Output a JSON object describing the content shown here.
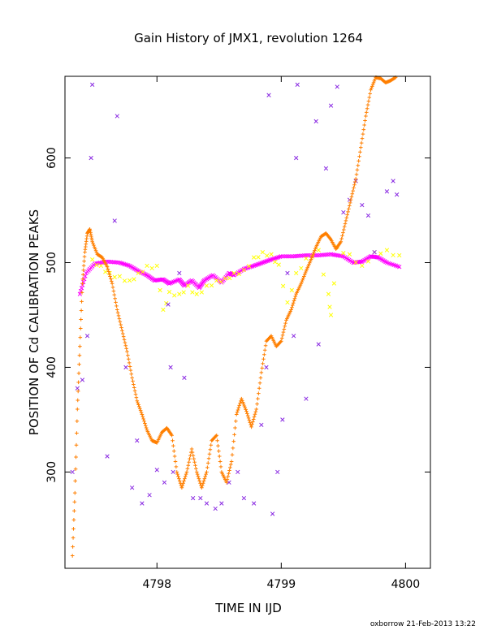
{
  "chart_data": {
    "type": "scatter",
    "title": "Gain History of JMX1, revolution 1264",
    "xlabel": "TIME IN IJD",
    "ylabel": "POSITION OF Cd CALIBRATION PEAKS",
    "xlim": [
      4797.26,
      4800.2
    ],
    "ylim": [
      208,
      678
    ],
    "x_ticks": [
      4798,
      4799,
      4800
    ],
    "y_ticks": [
      300,
      400,
      500,
      600
    ],
    "grid": false,
    "legend": "none",
    "series": [
      {
        "color": "#ff00ff",
        "marker": "dense-x",
        "points": [
          [
            4797.38,
            470
          ],
          [
            4797.43,
            490
          ],
          [
            4797.5,
            499
          ],
          [
            4797.6,
            501
          ],
          [
            4797.7,
            500
          ],
          [
            4797.78,
            497
          ],
          [
            4797.85,
            492
          ],
          [
            4797.92,
            488
          ],
          [
            4797.98,
            483
          ],
          [
            4798.05,
            484
          ],
          [
            4798.1,
            480
          ],
          [
            4798.18,
            484
          ],
          [
            4798.22,
            478
          ],
          [
            4798.28,
            483
          ],
          [
            4798.34,
            476
          ],
          [
            4798.38,
            483
          ],
          [
            4798.45,
            488
          ],
          [
            4798.52,
            481
          ],
          [
            4798.58,
            490
          ],
          [
            4798.62,
            488
          ],
          [
            4798.7,
            494
          ],
          [
            4798.78,
            497
          ],
          [
            4798.85,
            500
          ],
          [
            4798.92,
            503
          ],
          [
            4799.0,
            506
          ],
          [
            4799.1,
            506
          ],
          [
            4799.2,
            507
          ],
          [
            4799.3,
            507
          ],
          [
            4799.4,
            508
          ],
          [
            4799.5,
            506
          ],
          [
            4799.58,
            500
          ],
          [
            4799.65,
            501
          ],
          [
            4799.72,
            506
          ],
          [
            4799.78,
            505
          ],
          [
            4799.85,
            500
          ],
          [
            4799.95,
            496
          ]
        ]
      },
      {
        "color": "#ffff00",
        "marker": "sparse-x",
        "points": [
          [
            4797.48,
            503
          ],
          [
            4797.55,
            497
          ],
          [
            4797.62,
            490
          ],
          [
            4797.7,
            487
          ],
          [
            4797.78,
            483
          ],
          [
            4797.85,
            490
          ],
          [
            4797.92,
            497
          ],
          [
            4798.0,
            497
          ],
          [
            4798.05,
            455
          ],
          [
            4798.1,
            472
          ],
          [
            4798.18,
            470
          ],
          [
            4798.25,
            478
          ],
          [
            4798.32,
            470
          ],
          [
            4798.4,
            478
          ],
          [
            4798.48,
            483
          ],
          [
            4798.55,
            485
          ],
          [
            4798.62,
            490
          ],
          [
            4798.7,
            493
          ],
          [
            4798.78,
            505
          ],
          [
            4798.85,
            510
          ],
          [
            4798.92,
            508
          ],
          [
            4798.98,
            498
          ],
          [
            4799.05,
            462
          ],
          [
            4799.12,
            490
          ],
          [
            4799.2,
            504
          ],
          [
            4799.3,
            512
          ],
          [
            4799.38,
            470
          ],
          [
            4799.4,
            450
          ],
          [
            4799.45,
            515
          ],
          [
            4799.55,
            508
          ],
          [
            4799.65,
            497
          ],
          [
            4799.75,
            510
          ],
          [
            4799.85,
            512
          ],
          [
            4799.95,
            507
          ]
        ]
      },
      {
        "color": "#8a2be2",
        "marker": "x",
        "points": [
          [
            4797.32,
            300
          ],
          [
            4797.36,
            380
          ],
          [
            4797.4,
            388
          ],
          [
            4797.44,
            430
          ],
          [
            4797.47,
            600
          ],
          [
            4797.48,
            670
          ],
          [
            4797.6,
            315
          ],
          [
            4797.66,
            540
          ],
          [
            4797.68,
            640
          ],
          [
            4797.75,
            400
          ],
          [
            4797.8,
            285
          ],
          [
            4797.84,
            330
          ],
          [
            4797.88,
            270
          ],
          [
            4797.94,
            278
          ],
          [
            4798.0,
            302
          ],
          [
            4798.06,
            290
          ],
          [
            4798.09,
            460
          ],
          [
            4798.11,
            400
          ],
          [
            4798.13,
            300
          ],
          [
            4798.18,
            490
          ],
          [
            4798.22,
            390
          ],
          [
            4798.29,
            275
          ],
          [
            4798.35,
            275
          ],
          [
            4798.4,
            270
          ],
          [
            4798.47,
            265
          ],
          [
            4798.52,
            270
          ],
          [
            4798.58,
            290
          ],
          [
            4798.65,
            300
          ],
          [
            4798.7,
            275
          ],
          [
            4798.78,
            270
          ],
          [
            4798.84,
            345
          ],
          [
            4798.88,
            400
          ],
          [
            4798.9,
            660
          ],
          [
            4798.93,
            260
          ],
          [
            4798.97,
            300
          ],
          [
            4799.01,
            350
          ],
          [
            4799.05,
            490
          ],
          [
            4799.1,
            430
          ],
          [
            4799.12,
            600
          ],
          [
            4799.13,
            670
          ],
          [
            4799.2,
            370
          ],
          [
            4799.28,
            635
          ],
          [
            4799.3,
            422
          ],
          [
            4799.36,
            590
          ],
          [
            4799.4,
            650
          ],
          [
            4799.45,
            668
          ],
          [
            4799.5,
            548
          ],
          [
            4799.55,
            560
          ],
          [
            4799.6,
            578
          ],
          [
            4799.65,
            555
          ],
          [
            4799.7,
            545
          ],
          [
            4799.75,
            510
          ],
          [
            4799.85,
            568
          ],
          [
            4799.9,
            578
          ],
          [
            4799.93,
            565
          ]
        ]
      },
      {
        "color": "#ff7f00",
        "marker": "+",
        "points": [
          [
            4797.32,
            220
          ],
          [
            4797.34,
            280
          ],
          [
            4797.36,
            360
          ],
          [
            4797.38,
            420
          ],
          [
            4797.4,
            480
          ],
          [
            4797.42,
            510
          ],
          [
            4797.44,
            528
          ],
          [
            4797.46,
            532
          ],
          [
            4797.48,
            520
          ],
          [
            4797.52,
            508
          ],
          [
            4797.56,
            505
          ],
          [
            4797.6,
            496
          ],
          [
            4797.64,
            480
          ],
          [
            4797.68,
            455
          ],
          [
            4797.72,
            435
          ],
          [
            4797.76,
            415
          ],
          [
            4797.8,
            390
          ],
          [
            4797.84,
            368
          ],
          [
            4797.88,
            355
          ],
          [
            4797.92,
            340
          ],
          [
            4797.96,
            330
          ],
          [
            4798.0,
            328
          ],
          [
            4798.04,
            338
          ],
          [
            4798.08,
            342
          ],
          [
            4798.12,
            335
          ],
          [
            4798.16,
            300
          ],
          [
            4798.2,
            285
          ],
          [
            4798.24,
            300
          ],
          [
            4798.28,
            322
          ],
          [
            4798.32,
            300
          ],
          [
            4798.36,
            285
          ],
          [
            4798.4,
            300
          ],
          [
            4798.44,
            330
          ],
          [
            4798.48,
            335
          ],
          [
            4798.52,
            300
          ],
          [
            4798.56,
            290
          ],
          [
            4798.6,
            310
          ],
          [
            4798.64,
            355
          ],
          [
            4798.68,
            370
          ],
          [
            4798.72,
            358
          ],
          [
            4798.76,
            343
          ],
          [
            4798.8,
            360
          ],
          [
            4798.84,
            395
          ],
          [
            4798.88,
            425
          ],
          [
            4798.92,
            430
          ],
          [
            4798.96,
            420
          ],
          [
            4799.0,
            425
          ],
          [
            4799.04,
            445
          ],
          [
            4799.08,
            455
          ],
          [
            4799.12,
            470
          ],
          [
            4799.16,
            480
          ],
          [
            4799.2,
            492
          ],
          [
            4799.24,
            503
          ],
          [
            4799.28,
            515
          ],
          [
            4799.32,
            525
          ],
          [
            4799.36,
            528
          ],
          [
            4799.4,
            522
          ],
          [
            4799.44,
            513
          ],
          [
            4799.48,
            520
          ],
          [
            4799.52,
            540
          ],
          [
            4799.56,
            560
          ],
          [
            4799.6,
            580
          ],
          [
            4799.64,
            610
          ],
          [
            4799.68,
            640
          ],
          [
            4799.72,
            665
          ],
          [
            4799.76,
            677
          ],
          [
            4799.8,
            676
          ],
          [
            4799.84,
            672
          ],
          [
            4799.88,
            674
          ],
          [
            4799.92,
            677
          ]
        ]
      }
    ]
  },
  "footer": "oxborrow 21-Feb-2013 13:22"
}
